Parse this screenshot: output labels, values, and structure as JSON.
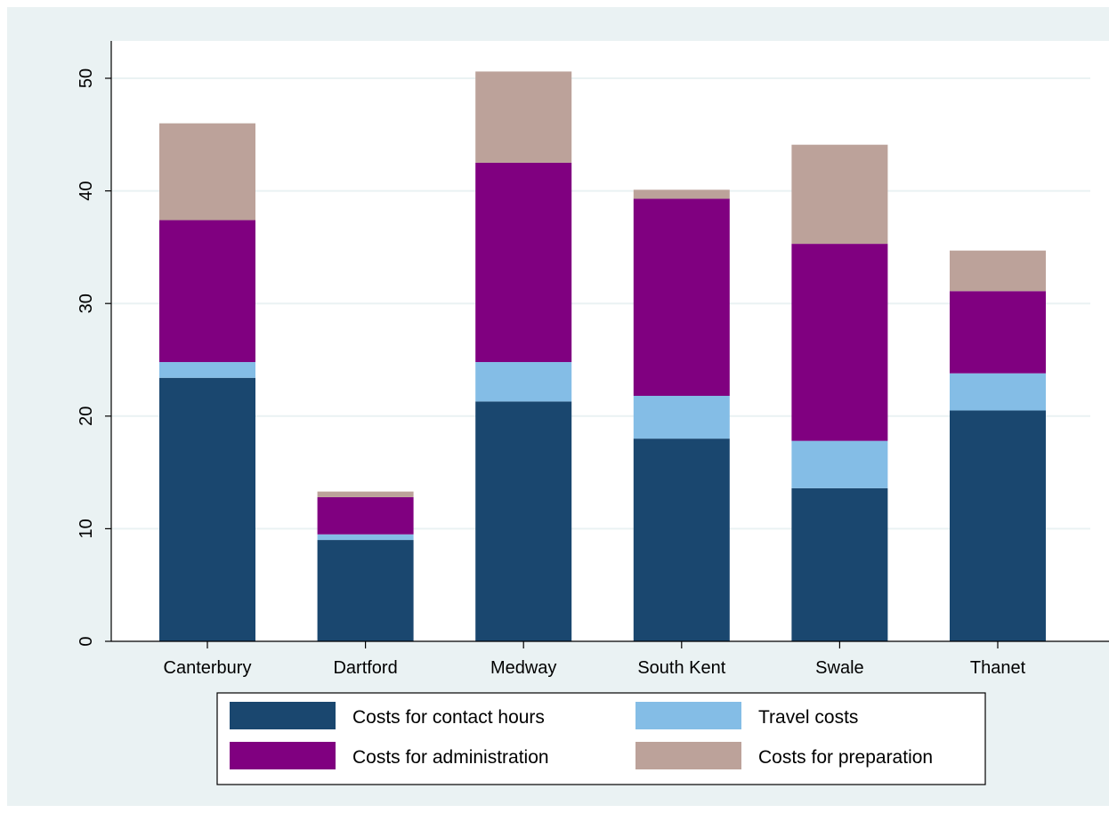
{
  "chart_data": {
    "type": "bar",
    "stacked": true,
    "categories": [
      "Canterbury",
      "Dartford",
      "Medway",
      "South Kent",
      "Swale",
      "Thanet"
    ],
    "series": [
      {
        "name": "Costs for contact hours",
        "color": "#1a476f",
        "values": [
          23.4,
          9.0,
          21.3,
          18.0,
          13.6,
          20.5
        ]
      },
      {
        "name": "Travel costs",
        "color": "#84bde6",
        "values": [
          1.4,
          0.5,
          3.5,
          3.8,
          4.2,
          3.3
        ]
      },
      {
        "name": "Costs for administration",
        "color": "#800080",
        "values": [
          12.6,
          3.3,
          17.7,
          17.5,
          17.5,
          7.3
        ]
      },
      {
        "name": "Costs for preparation",
        "color": "#bca29a",
        "values": [
          8.6,
          0.5,
          8.1,
          0.8,
          8.8,
          3.6
        ]
      }
    ],
    "xlabel": "",
    "ylabel": "",
    "ylim": [
      0,
      55
    ],
    "yticks": [
      "0",
      "10",
      "20",
      "30",
      "40",
      "50"
    ],
    "grid": "horizontal",
    "legend_position": "bottom",
    "colors": {
      "outer_background": "#eaf2f3",
      "plot_background": "#ffffff",
      "grid": "#eaf2f3",
      "axis": "#000000"
    }
  }
}
